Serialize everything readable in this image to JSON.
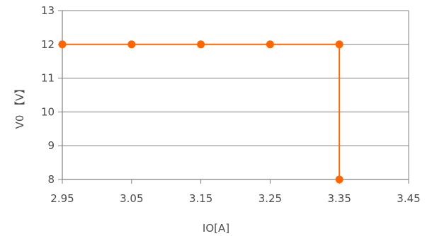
{
  "chart_data": {
    "type": "line",
    "xlabel": "IO[A]",
    "ylabel": "V0 【V】",
    "xlim": [
      2.95,
      3.45
    ],
    "ylim": [
      8,
      13
    ],
    "x_ticks": [
      "2.95",
      "3.05",
      "3.15",
      "3.25",
      "3.35",
      "3.45"
    ],
    "y_ticks": [
      "8",
      "9",
      "10",
      "11",
      "12",
      "13"
    ],
    "grid": "horizontal",
    "series": [
      {
        "color": "#ff6600",
        "points": [
          {
            "x": 2.95,
            "y": 12
          },
          {
            "x": 3.05,
            "y": 12
          },
          {
            "x": 3.15,
            "y": 12
          },
          {
            "x": 3.25,
            "y": 12
          },
          {
            "x": 3.35,
            "y": 12
          },
          {
            "x": 3.35,
            "y": 8
          }
        ]
      }
    ],
    "colors": {
      "grid": "#808080",
      "frame": "#808080",
      "text": "#4d4d4d"
    }
  }
}
